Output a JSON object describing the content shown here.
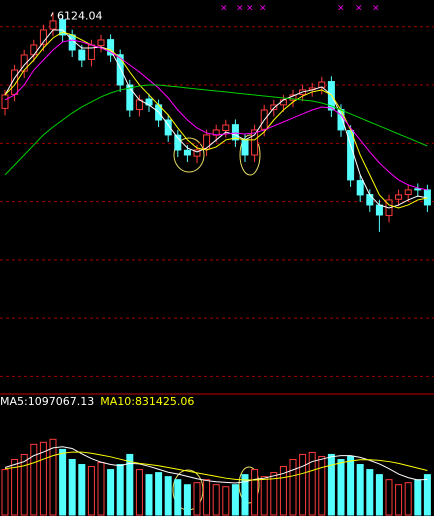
{
  "chart_data": [
    {
      "type": "candlestick",
      "annotation": "6124.04",
      "ylim": [
        2900,
        6230
      ],
      "grid_lines": [
        6000,
        5500,
        5000,
        4500,
        4000,
        3500,
        3000
      ],
      "up_color": "#ff3c3c",
      "down_color": "#54ffff",
      "grid_color": "#a00000",
      "open": [
        5300,
        5420,
        5620,
        5760,
        5850,
        5980,
        6060,
        5930,
        5800,
        5720,
        5840,
        5890,
        5760,
        5500,
        5290,
        5380,
        5330,
        5200,
        5070,
        4940,
        4890,
        4950,
        5070,
        5110,
        5160,
        5030,
        4900,
        5120,
        5290,
        5330,
        5370,
        5420,
        5460,
        5480,
        5530,
        5290,
        5110,
        4680,
        4560,
        4470,
        4380,
        4520,
        4560,
        4610,
        4600
      ],
      "high": [
        5460,
        5674,
        5803,
        5889,
        6018,
        6124.04,
        6105,
        5975,
        5845,
        5889,
        5932,
        5935,
        5805,
        5545,
        5417,
        5425,
        5375,
        5245,
        5115,
        4985,
        4988,
        5117,
        5160,
        5202,
        5205,
        5075,
        5160,
        5331,
        5374,
        5417,
        5460,
        5503,
        5520,
        5571,
        5575,
        5335,
        5155,
        4725,
        4605,
        4515,
        4559,
        4602,
        4645,
        4655,
        4645
      ],
      "low": [
        5240,
        5360,
        5560,
        5700,
        5790,
        5920,
        5870,
        5741,
        5655,
        5660,
        5780,
        5698,
        5441,
        5226,
        5230,
        5269,
        5140,
        5012,
        4883,
        4840,
        4830,
        4890,
        5010,
        5050,
        4969,
        4840,
        4840,
        5060,
        5230,
        5270,
        5310,
        5360,
        5400,
        5420,
        5226,
        5055,
        4626,
        4497,
        4411,
        4240,
        4320,
        4460,
        4500,
        4540,
        4411
      ],
      "close": [
        5415,
        5629,
        5758,
        5844,
        5973,
        6050,
        5930,
        5801,
        5715,
        5844,
        5887,
        5758,
        5501,
        5286,
        5372,
        5329,
        5200,
        5072,
        4943,
        4900,
        4943,
        5072,
        5115,
        5157,
        5029,
        4900,
        5115,
        5286,
        5329,
        5372,
        5415,
        5458,
        5475,
        5526,
        5286,
        5115,
        4686,
        4557,
        4471,
        4385,
        4514,
        4557,
        4600,
        4600,
        4471
      ],
      "series": [
        {
          "color": "#ffffff",
          "values": [
            5415,
            5561,
            5672,
            5758,
            5870,
            5973,
            5973,
            5887,
            5818,
            5818,
            5827,
            5801,
            5647,
            5475,
            5372,
            5329,
            5269,
            5157,
            5046,
            4960,
            4926,
            4960,
            5029,
            5097,
            5072,
            5029,
            5072,
            5200,
            5303,
            5372,
            5406,
            5441,
            5458,
            5484,
            5415,
            5243,
            4986,
            4729,
            4557,
            4471,
            4445,
            4471,
            4514,
            4548,
            4531
          ]
        },
        {
          "color": "#ffff00",
          "values": [
            5415,
            5501,
            5629,
            5715,
            5818,
            5904,
            5955,
            5930,
            5887,
            5844,
            5818,
            5801,
            5732,
            5612,
            5501,
            5415,
            5329,
            5243,
            5132,
            5029,
            4960,
            4943,
            4969,
            5029,
            5046,
            5029,
            5029,
            5097,
            5200,
            5286,
            5355,
            5406,
            5441,
            5458,
            5415,
            5286,
            5115,
            4900,
            4729,
            4557,
            4471,
            4445,
            4471,
            4514,
            4531
          ]
        },
        {
          "color": "#ff00ff",
          "values": [
            5372,
            5415,
            5501,
            5629,
            5715,
            5801,
            5870,
            5887,
            5870,
            5844,
            5818,
            5784,
            5732,
            5672,
            5612,
            5544,
            5475,
            5389,
            5286,
            5200,
            5132,
            5089,
            5072,
            5080,
            5089,
            5080,
            5089,
            5115,
            5149,
            5183,
            5218,
            5252,
            5286,
            5312,
            5303,
            5243,
            5132,
            5029,
            4926,
            4831,
            4754,
            4686,
            4643,
            4617,
            4600
          ]
        },
        {
          "color": "#00d000",
          "values": [
            4729,
            4814,
            4900,
            4986,
            5072,
            5140,
            5200,
            5260,
            5312,
            5355,
            5398,
            5432,
            5458,
            5475,
            5492,
            5501,
            5501,
            5492,
            5484,
            5475,
            5466,
            5458,
            5449,
            5441,
            5432,
            5423,
            5415,
            5406,
            5398,
            5389,
            5381,
            5372,
            5363,
            5346,
            5321,
            5286,
            5252,
            5218,
            5183,
            5149,
            5115,
            5080,
            5046,
            5012,
            4977
          ]
        }
      ]
    },
    {
      "type": "bar",
      "ylim": [
        0,
        1600000
      ],
      "values": [
        765000,
        935000,
        1020000,
        1190000,
        1224000,
        1275000,
        1105000,
        935000,
        850000,
        816000,
        884000,
        765000,
        850000,
        1020000,
        765000,
        680000,
        714000,
        646000,
        595000,
        510000,
        544000,
        595000,
        510000,
        476000,
        510000,
        680000,
        765000,
        646000,
        714000,
        816000,
        935000,
        1020000,
        1054000,
        986000,
        1020000,
        935000,
        986000,
        850000,
        765000,
        680000,
        595000,
        510000,
        544000,
        595000,
        680000
      ],
      "series": [
        {
          "name": "MA5:1097067.13",
          "color": "#ffffff",
          "values": [
            800000,
            850000,
            900000,
            1000000,
            1060000,
            1130000,
            1150000,
            1120000,
            1030000,
            950000,
            890000,
            850000,
            830000,
            870000,
            860000,
            820000,
            770000,
            720000,
            690000,
            650000,
            610000,
            580000,
            560000,
            550000,
            540000,
            560000,
            600000,
            620000,
            660000,
            700000,
            760000,
            820000,
            900000,
            940000,
            980000,
            1000000,
            1000000,
            970000,
            920000,
            860000,
            780000,
            690000,
            630000,
            590000,
            600000
          ]
        },
        {
          "name": "MA10:831425.06",
          "color": "#ffff00",
          "values": [
            780000,
            800000,
            830000,
            880000,
            940000,
            1000000,
            1040000,
            1060000,
            1060000,
            1040000,
            1010000,
            980000,
            940000,
            900000,
            870000,
            850000,
            830000,
            800000,
            770000,
            740000,
            710000,
            680000,
            650000,
            620000,
            600000,
            590000,
            590000,
            600000,
            610000,
            630000,
            660000,
            700000,
            750000,
            800000,
            840000,
            880000,
            910000,
            930000,
            930000,
            920000,
            900000,
            870000,
            830000,
            790000,
            750000
          ]
        }
      ]
    }
  ]
}
